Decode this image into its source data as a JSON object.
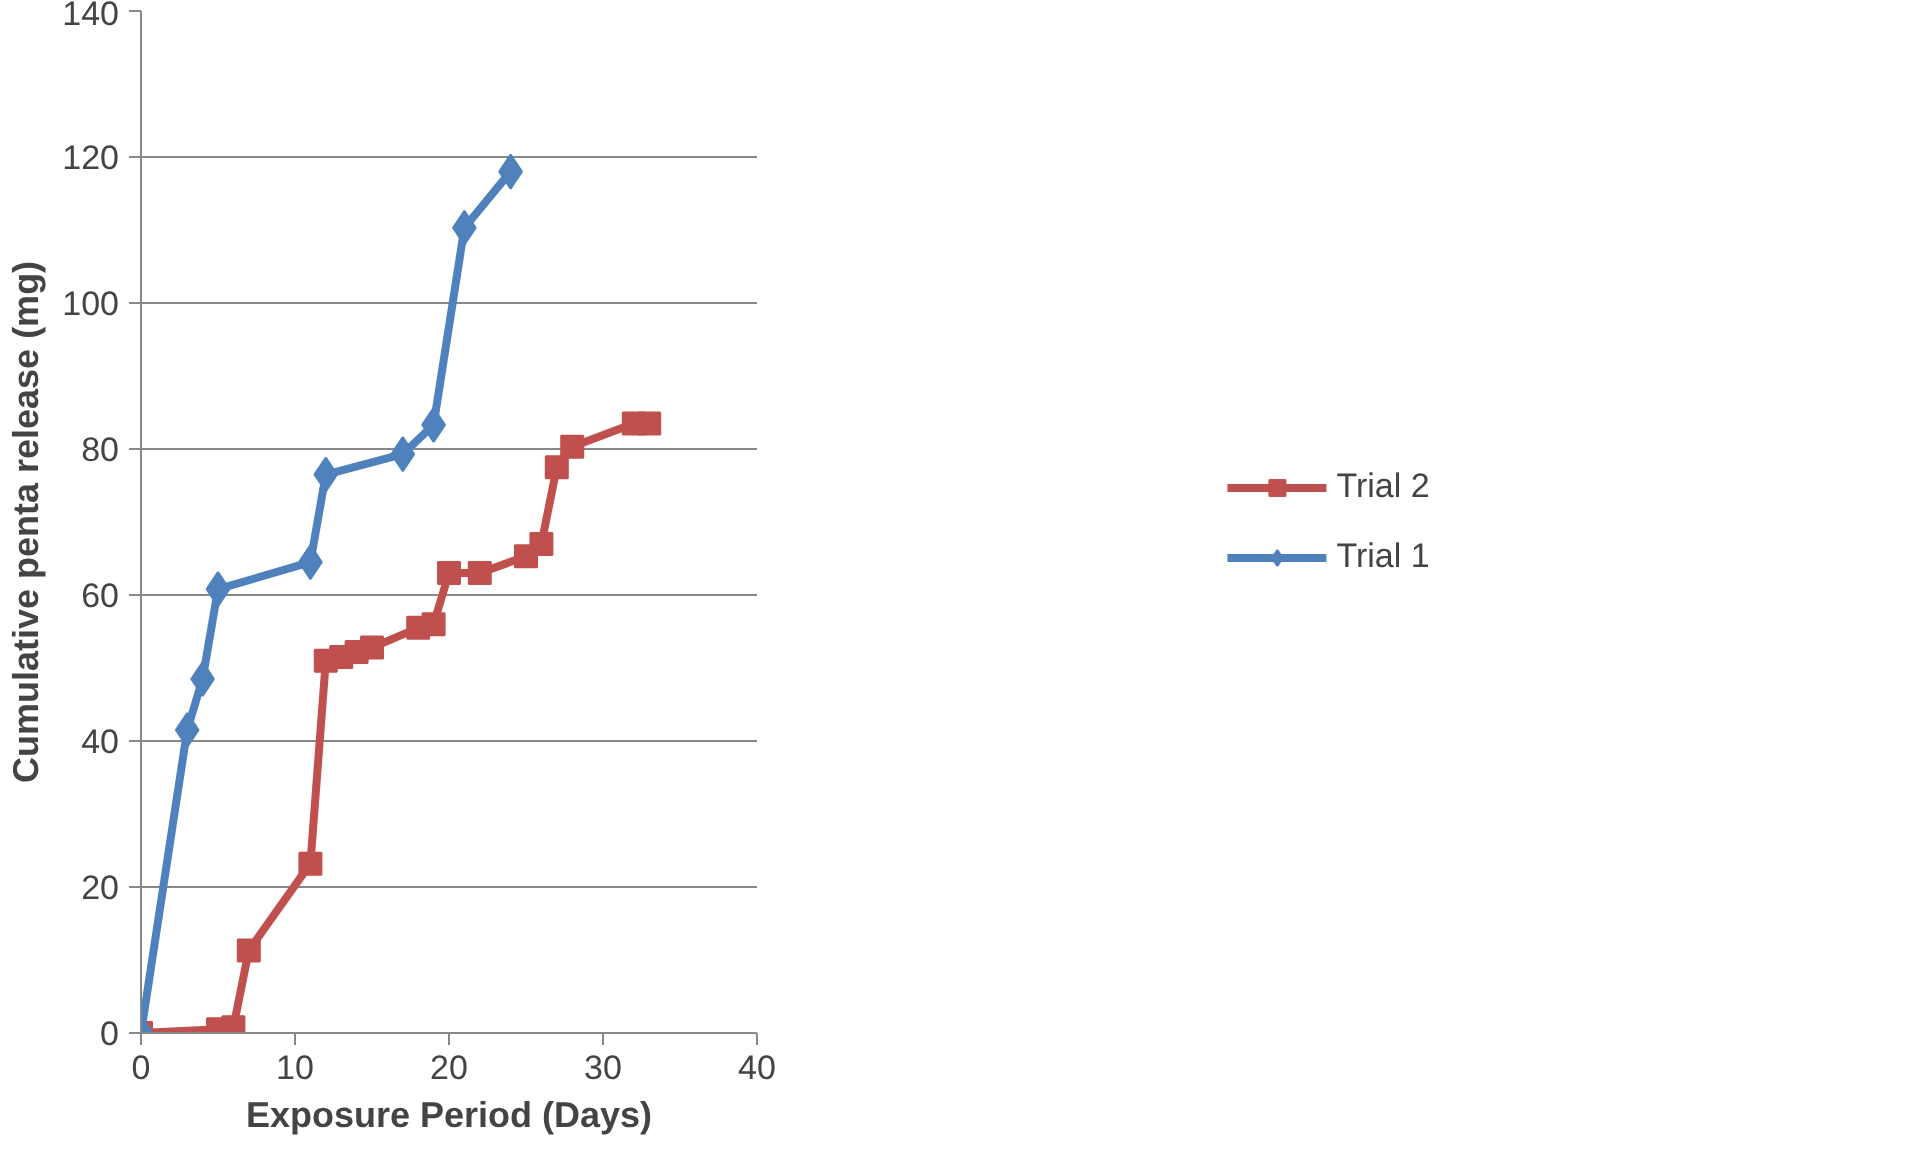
{
  "chart_data": {
    "type": "line",
    "xlabel": "Exposure Period (Days)",
    "ylabel": "Cumulative penta release (mg)",
    "xlim": [
      0,
      40
    ],
    "xticks": [
      0,
      10,
      20,
      30,
      40
    ],
    "ylim": [
      0,
      140
    ],
    "yticks": [
      0,
      20,
      40,
      60,
      80,
      100,
      120,
      140
    ],
    "grid": "y",
    "legend": "right",
    "line_style": "solid",
    "series": [
      {
        "name": "Trial 2",
        "color": "#c0504d",
        "marker": "square",
        "x": [
          0,
          5,
          6,
          7,
          11,
          12,
          13,
          14,
          15,
          18,
          19,
          20,
          22,
          25,
          26,
          27,
          28,
          32,
          33
        ],
        "values": [
          0,
          0.5,
          0.8,
          11.3,
          23.2,
          51,
          51.5,
          52.2,
          52.8,
          55.5,
          56,
          63,
          63,
          65.3,
          67,
          77.5,
          80.3,
          83.5,
          83.5
        ]
      },
      {
        "name": "Trial 1",
        "color": "#4f81bd",
        "marker": "diamond",
        "x": [
          0,
          3,
          4,
          5,
          11,
          12,
          17,
          19,
          21,
          24
        ],
        "values": [
          0,
          41.5,
          48.5,
          60.8,
          64.5,
          76.5,
          79.3,
          83.3,
          110.3,
          118
        ]
      }
    ]
  }
}
